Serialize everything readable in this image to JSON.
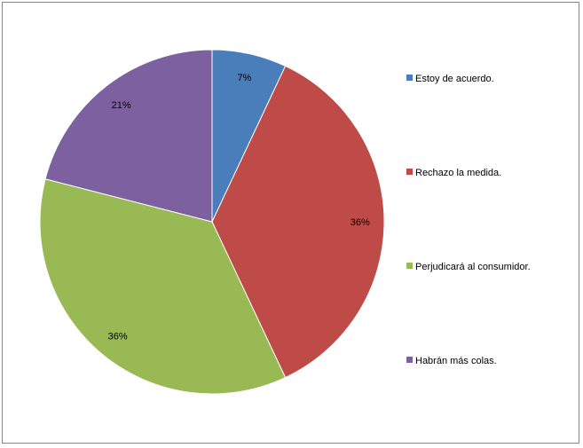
{
  "chart_data": {
    "type": "pie",
    "title": "",
    "start_angle_deg": 0,
    "direction": "clockwise",
    "legend_position": "right",
    "slices": [
      {
        "label": "Estoy de acuerdo.",
        "value": 7,
        "display": "7%",
        "color": "#4A7EBB"
      },
      {
        "label": "Rechazo la medida.",
        "value": 36,
        "display": "36%",
        "color": "#BE4B48"
      },
      {
        "label": "Perjudicará al consumidor.",
        "value": 36,
        "display": "36%",
        "color": "#98B954"
      },
      {
        "label": "Habrán más colas.",
        "value": 21,
        "display": "21%",
        "color": "#7D60A0"
      }
    ]
  }
}
